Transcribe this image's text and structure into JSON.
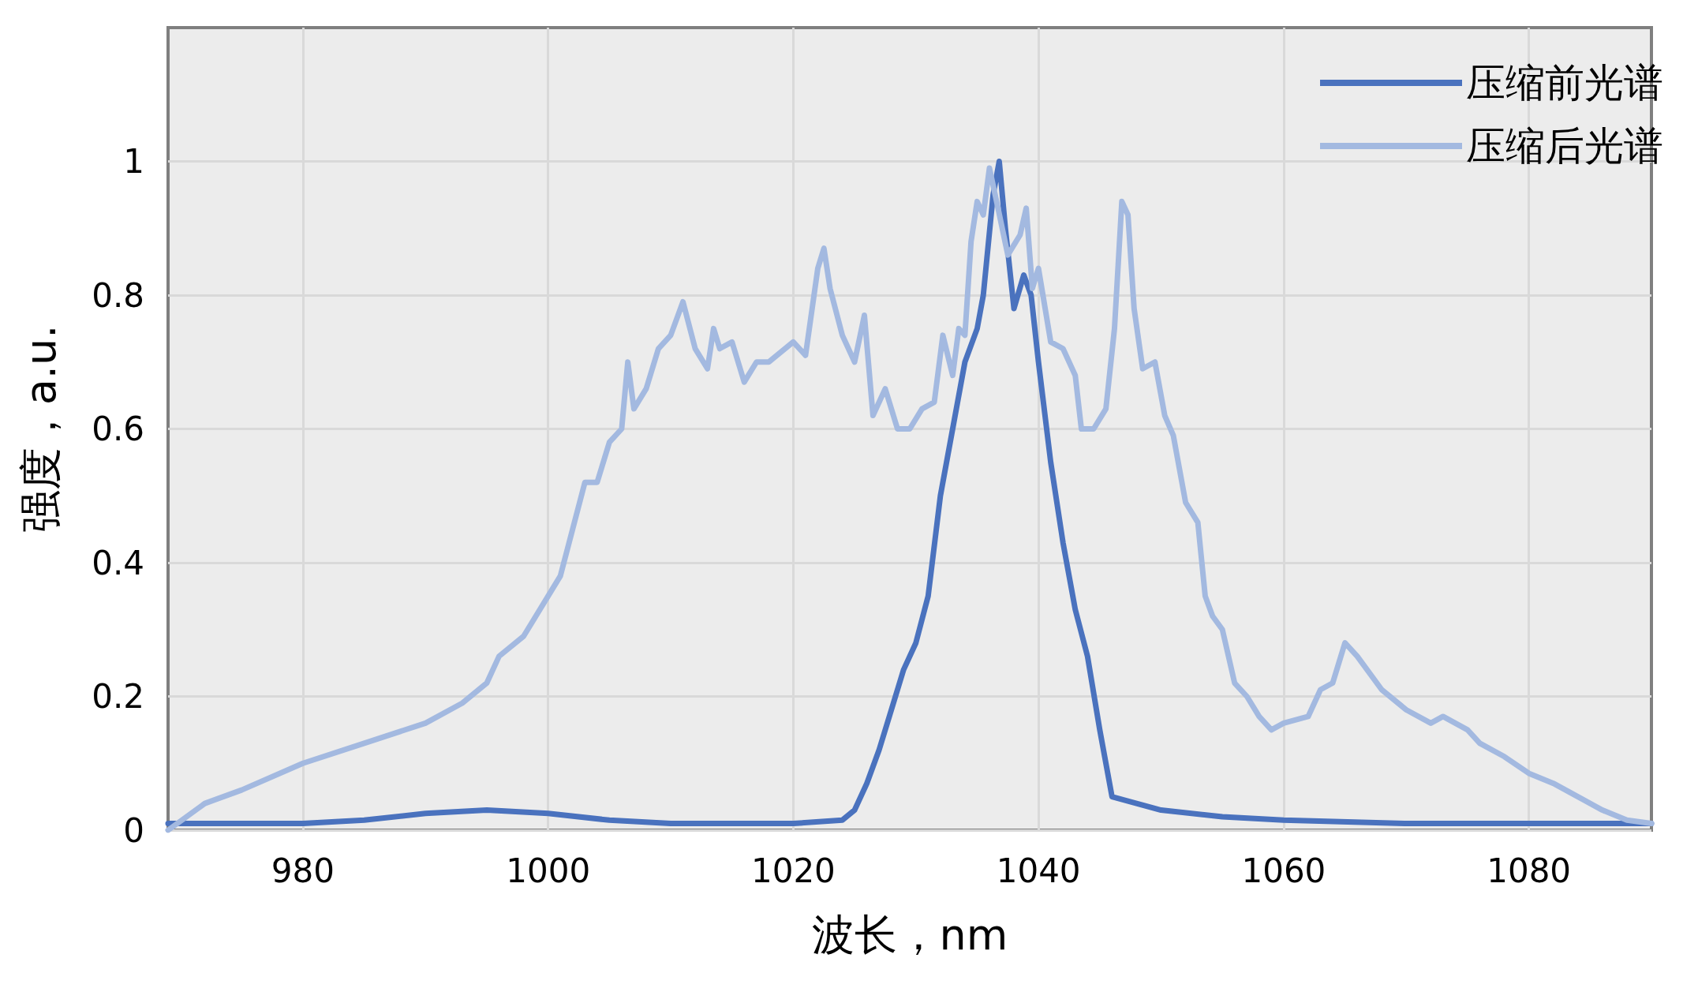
{
  "chart_data": {
    "type": "line",
    "xlabel": "波长，nm",
    "ylabel": "强度，a.u.",
    "xlim": [
      969,
      1090
    ],
    "ylim": [
      0,
      1.2
    ],
    "xticks": [
      980,
      1000,
      1020,
      1040,
      1060,
      1080
    ],
    "yticks": [
      0,
      0.2,
      0.4,
      0.6,
      0.8,
      1
    ],
    "grid": true,
    "legend": "top right",
    "marker": "none",
    "line_style": "solid",
    "series": [
      {
        "name": "压缩前光谱",
        "color": "#4a72be",
        "x": [
          969,
          980,
          985,
          990,
          995,
          1000,
          1005,
          1010,
          1020,
          1024,
          1025,
          1026,
          1027,
          1028,
          1029,
          1030,
          1031,
          1032,
          1033,
          1034,
          1035,
          1035.5,
          1036.3,
          1036.8,
          1037.3,
          1038,
          1038.8,
          1039.4,
          1040,
          1041,
          1042,
          1043,
          1044,
          1045,
          1046,
          1048,
          1050,
          1055,
          1060,
          1070,
          1090
        ],
        "values": [
          0.01,
          0.01,
          0.015,
          0.025,
          0.03,
          0.025,
          0.015,
          0.01,
          0.01,
          0.015,
          0.03,
          0.07,
          0.12,
          0.18,
          0.24,
          0.28,
          0.35,
          0.5,
          0.6,
          0.7,
          0.75,
          0.8,
          0.95,
          1.0,
          0.9,
          0.78,
          0.83,
          0.8,
          0.7,
          0.55,
          0.43,
          0.33,
          0.26,
          0.15,
          0.05,
          0.04,
          0.03,
          0.02,
          0.015,
          0.01,
          0.01
        ]
      },
      {
        "name": "压缩后光谱",
        "color": "#a3b9e0",
        "x": [
          969,
          972,
          975,
          980,
          985,
          990,
          993,
          995,
          996,
          998,
          1000,
          1001,
          1002,
          1003,
          1004,
          1005,
          1006,
          1006.5,
          1007,
          1008,
          1009,
          1010,
          1011,
          1012,
          1013,
          1013.5,
          1014,
          1015,
          1016,
          1017,
          1018,
          1020,
          1021,
          1022,
          1022.5,
          1023,
          1024,
          1025,
          1025.8,
          1026.5,
          1027.5,
          1028.5,
          1029.5,
          1030.5,
          1031.5,
          1032.2,
          1033,
          1033.5,
          1034,
          1034.5,
          1035,
          1035.5,
          1036,
          1036.7,
          1037.5,
          1038.5,
          1039,
          1039.5,
          1040,
          1041,
          1042,
          1043,
          1043.5,
          1044.5,
          1045.5,
          1046.2,
          1046.8,
          1047.3,
          1047.8,
          1048.5,
          1049.5,
          1050.3,
          1051,
          1052,
          1053,
          1053.6,
          1054.2,
          1055,
          1056,
          1057,
          1058,
          1059,
          1060,
          1062,
          1063,
          1064,
          1064.5,
          1065,
          1066,
          1068,
          1070,
          1072,
          1073,
          1075,
          1076,
          1078,
          1080,
          1082,
          1084,
          1086,
          1088,
          1090
        ],
        "values": [
          0,
          0.04,
          0.06,
          0.1,
          0.13,
          0.16,
          0.19,
          0.22,
          0.26,
          0.29,
          0.35,
          0.38,
          0.45,
          0.52,
          0.52,
          0.58,
          0.6,
          0.7,
          0.63,
          0.66,
          0.72,
          0.74,
          0.79,
          0.72,
          0.69,
          0.75,
          0.72,
          0.73,
          0.67,
          0.7,
          0.7,
          0.73,
          0.71,
          0.84,
          0.87,
          0.81,
          0.74,
          0.7,
          0.77,
          0.62,
          0.66,
          0.6,
          0.6,
          0.63,
          0.64,
          0.74,
          0.68,
          0.75,
          0.74,
          0.88,
          0.94,
          0.92,
          0.99,
          0.93,
          0.86,
          0.89,
          0.93,
          0.81,
          0.84,
          0.73,
          0.72,
          0.68,
          0.6,
          0.6,
          0.63,
          0.75,
          0.94,
          0.92,
          0.78,
          0.69,
          0.7,
          0.62,
          0.59,
          0.49,
          0.46,
          0.35,
          0.32,
          0.3,
          0.22,
          0.2,
          0.17,
          0.15,
          0.16,
          0.17,
          0.21,
          0.22,
          0.25,
          0.28,
          0.26,
          0.21,
          0.18,
          0.16,
          0.17,
          0.15,
          0.13,
          0.11,
          0.085,
          0.07,
          0.05,
          0.03,
          0.015,
          0.01
        ]
      }
    ]
  }
}
